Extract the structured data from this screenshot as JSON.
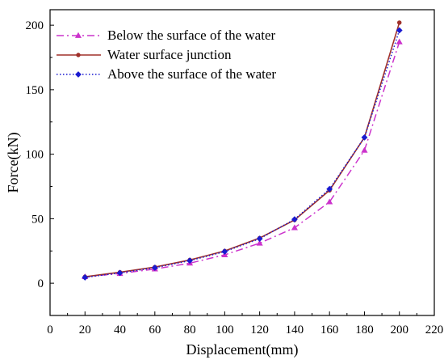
{
  "chart_data": {
    "type": "line",
    "title": "",
    "xlabel": "Displacement(mm)",
    "ylabel": "Force(kN)",
    "xlim": [
      0,
      220
    ],
    "ylim": [
      -25,
      212
    ],
    "xticks": [
      0,
      20,
      40,
      60,
      80,
      100,
      120,
      140,
      160,
      180,
      200,
      220
    ],
    "yticks": [
      0,
      50,
      100,
      150,
      200
    ],
    "grid": false,
    "legend_position": "top-left",
    "x": [
      20,
      40,
      60,
      80,
      100,
      120,
      140,
      160,
      180,
      200
    ],
    "series": [
      {
        "name": "Below the surface of the water",
        "values": [
          5,
          7.5,
          11,
          15.5,
          22,
          31,
          43,
          63,
          103,
          187
        ],
        "color": "#cc33cc",
        "line_style": "dash-dot",
        "marker": "triangle-up"
      },
      {
        "name": "Water surface junction",
        "values": [
          5,
          8.5,
          12.5,
          18,
          25,
          35,
          49,
          72,
          113,
          202
        ],
        "color": "#a0302a",
        "line_style": "solid",
        "marker": "circle"
      },
      {
        "name": "Above the surface of the water",
        "values": [
          4.5,
          8,
          12,
          17.5,
          24.5,
          34.5,
          49.5,
          73,
          113,
          196
        ],
        "color": "#1a1ad0",
        "line_style": "dotted",
        "marker": "diamond"
      }
    ]
  }
}
